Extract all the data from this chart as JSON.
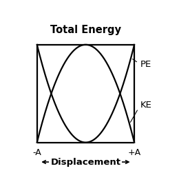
{
  "title": "Total Energy",
  "label_neg_A": "-A",
  "label_pos_A": "+A",
  "label_PE": "PE",
  "label_KE": "KE",
  "label_displacement": "Displacement",
  "line_color": "#000000",
  "bg_color": "#ffffff",
  "line_width": 1.6,
  "title_fontsize": 10.5,
  "tick_fontsize": 9,
  "label_fontsize": 9.5,
  "annot_fontsize": 9
}
